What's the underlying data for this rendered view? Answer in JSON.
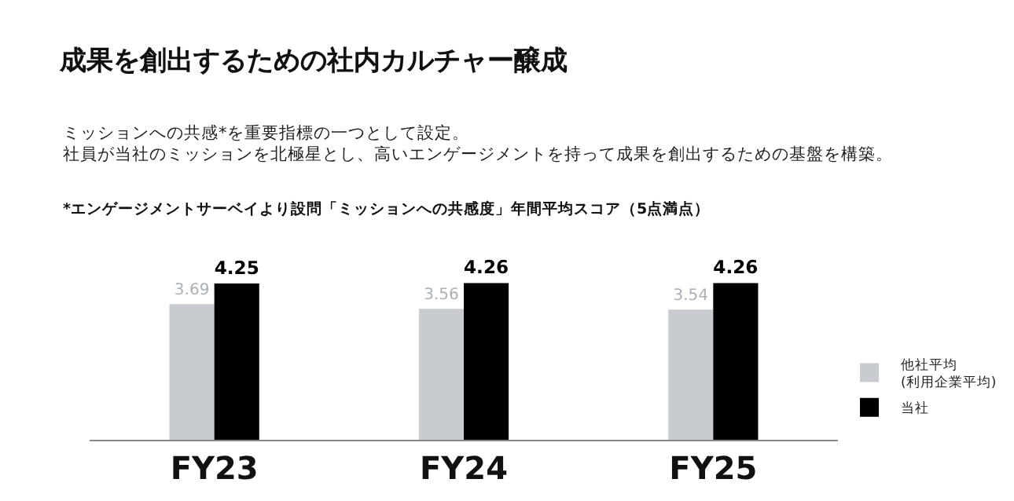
{
  "chart_data": {
    "type": "bar",
    "title": "成果を創出するための社内カルチャー醸成",
    "subtitle": "ミッションへの共感*を重要指標の一つとして設定。社員が当社のミッションを北極星とし、高いエンゲージメントを持って成果を創出するための基盤を構築。",
    "annotations": [
      "*エンゲージメントサーベイより設問「ミッションへの共感度」年間平均スコア（5点満点）"
    ],
    "categories": [
      "FY23",
      "FY24",
      "FY25"
    ],
    "series": [
      {
        "name": "他社平均\n(利用企業平均)",
        "color": "#c8ccd0",
        "values": [
          3.69,
          3.56,
          3.54
        ]
      },
      {
        "name": "当社",
        "color": "#000000",
        "values": [
          4.25,
          4.26,
          4.26
        ]
      }
    ],
    "tick_labels": "x",
    "data_labels": true,
    "legend": "bottom right"
  }
}
